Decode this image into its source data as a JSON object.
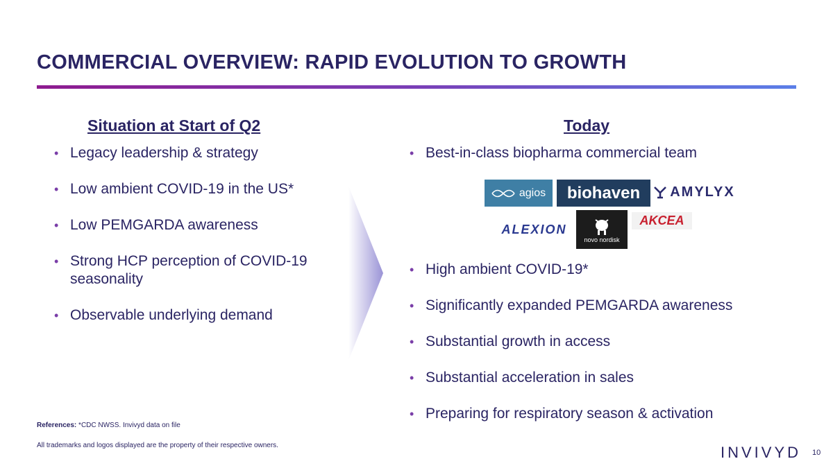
{
  "slide": {
    "title": "COMMERCIAL OVERVIEW: RAPID EVOLUTION TO GROWTH",
    "page_number": "10"
  },
  "left": {
    "heading": "Situation at Start of Q2",
    "bullets": [
      "Legacy leadership & strategy",
      "Low ambient COVID-19 in the US*",
      "Low PEMGARDA awareness",
      "Strong HCP perception of COVID-19 seasonality",
      "Observable underlying demand"
    ]
  },
  "right": {
    "heading": "Today",
    "top_bullets": [
      "Best-in-class biopharma commercial team"
    ],
    "bullets": [
      "High ambient COVID-19*",
      "Significantly expanded PEMGARDA awareness",
      "Substantial growth in access",
      "Substantial acceleration in sales",
      "Preparing for respiratory season & activation"
    ]
  },
  "logos": {
    "agios": "agios",
    "biohaven": "biohaven",
    "amylyx": "AMYLYX",
    "alexion": "ALEXION",
    "novo_nordisk": "novo nordisk",
    "akcea": "AKCEA"
  },
  "footer": {
    "refs_label": "References:",
    "refs_text": "*CDC NWSS. Invivyd data on file",
    "trademark": "All trademarks and logos displayed are the property of their respective owners.",
    "brand": "INVIVYD"
  },
  "colors": {
    "navy": "#2a2463",
    "accent_purple": "#7a3ea8",
    "gradient_start": "#8e1b8f",
    "gradient_end": "#5b7fe8"
  }
}
